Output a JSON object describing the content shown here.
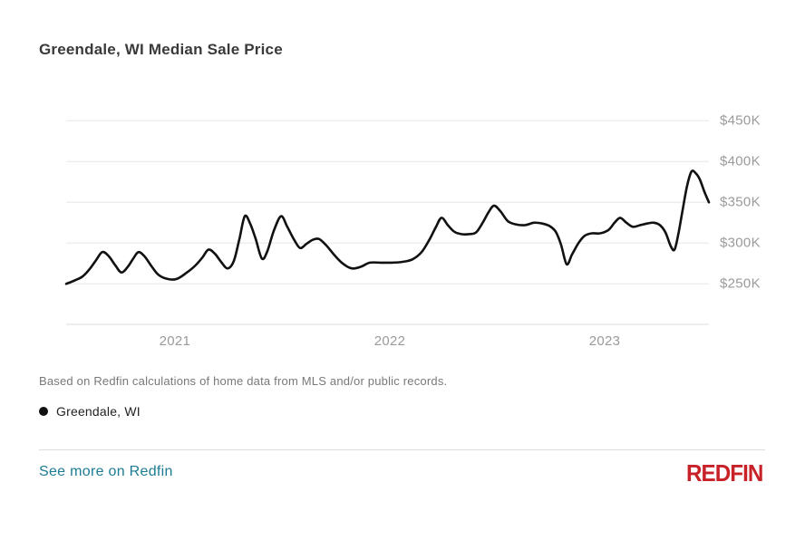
{
  "header": {
    "title": "Greendale, WI Median Sale Price"
  },
  "chart_data": {
    "type": "line",
    "title": "Greendale, WI Median Sale Price",
    "grid": true,
    "legend_position": "bottom-left",
    "x_range": [
      2020.494,
      2023.485
    ],
    "ylim": [
      200,
      460
    ],
    "y_axis_unit": "USD thousands",
    "x_ticks": [
      {
        "label": "2021",
        "value": 2021
      },
      {
        "label": "2022",
        "value": 2022
      },
      {
        "label": "2023",
        "value": 2023
      }
    ],
    "y_ticks": [
      {
        "label": "$250K",
        "value": 250
      },
      {
        "label": "$300K",
        "value": 300
      },
      {
        "label": "$350K",
        "value": 350
      },
      {
        "label": "$400K",
        "value": 400
      },
      {
        "label": "$450K",
        "value": 450
      }
    ],
    "series": [
      {
        "name": "Greendale, WI",
        "color": "#111111",
        "points": [
          [
            2020.494,
            250
          ],
          [
            2020.532,
            254
          ],
          [
            2020.57,
            259
          ],
          [
            2020.603,
            268
          ],
          [
            2020.633,
            279
          ],
          [
            2020.662,
            289
          ],
          [
            2020.692,
            284
          ],
          [
            2020.722,
            273
          ],
          [
            2020.751,
            264
          ],
          [
            2020.781,
            271
          ],
          [
            2020.806,
            281
          ],
          [
            2020.831,
            289
          ],
          [
            2020.861,
            283
          ],
          [
            2020.89,
            272
          ],
          [
            2020.924,
            261
          ],
          [
            2020.966,
            256
          ],
          [
            2021.008,
            256
          ],
          [
            2021.051,
            263
          ],
          [
            2021.093,
            272
          ],
          [
            2021.127,
            282
          ],
          [
            2021.156,
            292
          ],
          [
            2021.186,
            287
          ],
          [
            2021.215,
            277
          ],
          [
            2021.245,
            269
          ],
          [
            2021.274,
            278
          ],
          [
            2021.3,
            305
          ],
          [
            2021.325,
            333
          ],
          [
            2021.35,
            324
          ],
          [
            2021.376,
            305
          ],
          [
            2021.405,
            281
          ],
          [
            2021.43,
            290
          ],
          [
            2021.46,
            315
          ],
          [
            2021.494,
            333
          ],
          [
            2021.523,
            320
          ],
          [
            2021.553,
            305
          ],
          [
            2021.582,
            294
          ],
          [
            2021.612,
            299
          ],
          [
            2021.641,
            304
          ],
          [
            2021.671,
            305
          ],
          [
            2021.705,
            297
          ],
          [
            2021.743,
            285
          ],
          [
            2021.781,
            275
          ],
          [
            2021.823,
            269
          ],
          [
            2021.865,
            271
          ],
          [
            2021.907,
            276
          ],
          [
            2021.958,
            276
          ],
          [
            2022.008,
            276
          ],
          [
            2022.059,
            277
          ],
          [
            2022.105,
            280
          ],
          [
            2022.148,
            289
          ],
          [
            2022.186,
            305
          ],
          [
            2022.215,
            320
          ],
          [
            2022.241,
            331
          ],
          [
            2022.27,
            322
          ],
          [
            2022.3,
            314
          ],
          [
            2022.333,
            311
          ],
          [
            2022.367,
            311
          ],
          [
            2022.401,
            313
          ],
          [
            2022.43,
            324
          ],
          [
            2022.46,
            338
          ],
          [
            2022.485,
            346
          ],
          [
            2022.515,
            339
          ],
          [
            2022.549,
            327
          ],
          [
            2022.586,
            323
          ],
          [
            2022.629,
            322
          ],
          [
            2022.671,
            325
          ],
          [
            2022.709,
            324
          ],
          [
            2022.743,
            321
          ],
          [
            2022.772,
            314
          ],
          [
            2022.797,
            298
          ],
          [
            2022.823,
            274
          ],
          [
            2022.848,
            286
          ],
          [
            2022.878,
            300
          ],
          [
            2022.907,
            309
          ],
          [
            2022.941,
            312
          ],
          [
            2022.979,
            312
          ],
          [
            2023.017,
            316
          ],
          [
            2023.046,
            325
          ],
          [
            2023.072,
            331
          ],
          [
            2023.101,
            325
          ],
          [
            2023.131,
            320
          ],
          [
            2023.165,
            322
          ],
          [
            2023.198,
            324
          ],
          [
            2023.228,
            325
          ],
          [
            2023.257,
            322
          ],
          [
            2023.283,
            313
          ],
          [
            2023.308,
            296
          ],
          [
            2023.325,
            292
          ],
          [
            2023.342,
            310
          ],
          [
            2023.363,
            341
          ],
          [
            2023.384,
            371
          ],
          [
            2023.405,
            388
          ],
          [
            2023.426,
            385
          ],
          [
            2023.443,
            378
          ],
          [
            2023.464,
            363
          ],
          [
            2023.485,
            350
          ]
        ]
      }
    ]
  },
  "footnote": "Based on Redfin calculations of home data from MLS and/or public records.",
  "legend": {
    "items": [
      {
        "label": "Greendale, WI",
        "color": "#111111"
      }
    ]
  },
  "footer": {
    "link_label": "See more on Redfin",
    "logo_text": "REDFIN"
  },
  "colors": {
    "title_text": "#3a3a3a",
    "axis_label": "#9a9a9a",
    "grid_line": "#ededed",
    "axis_line": "#e3e3e3",
    "series_line": "#111111",
    "footnote_text": "#787878",
    "link": "#1d7b93",
    "brand_red": "#c82128",
    "divider": "#dcdcdc"
  }
}
